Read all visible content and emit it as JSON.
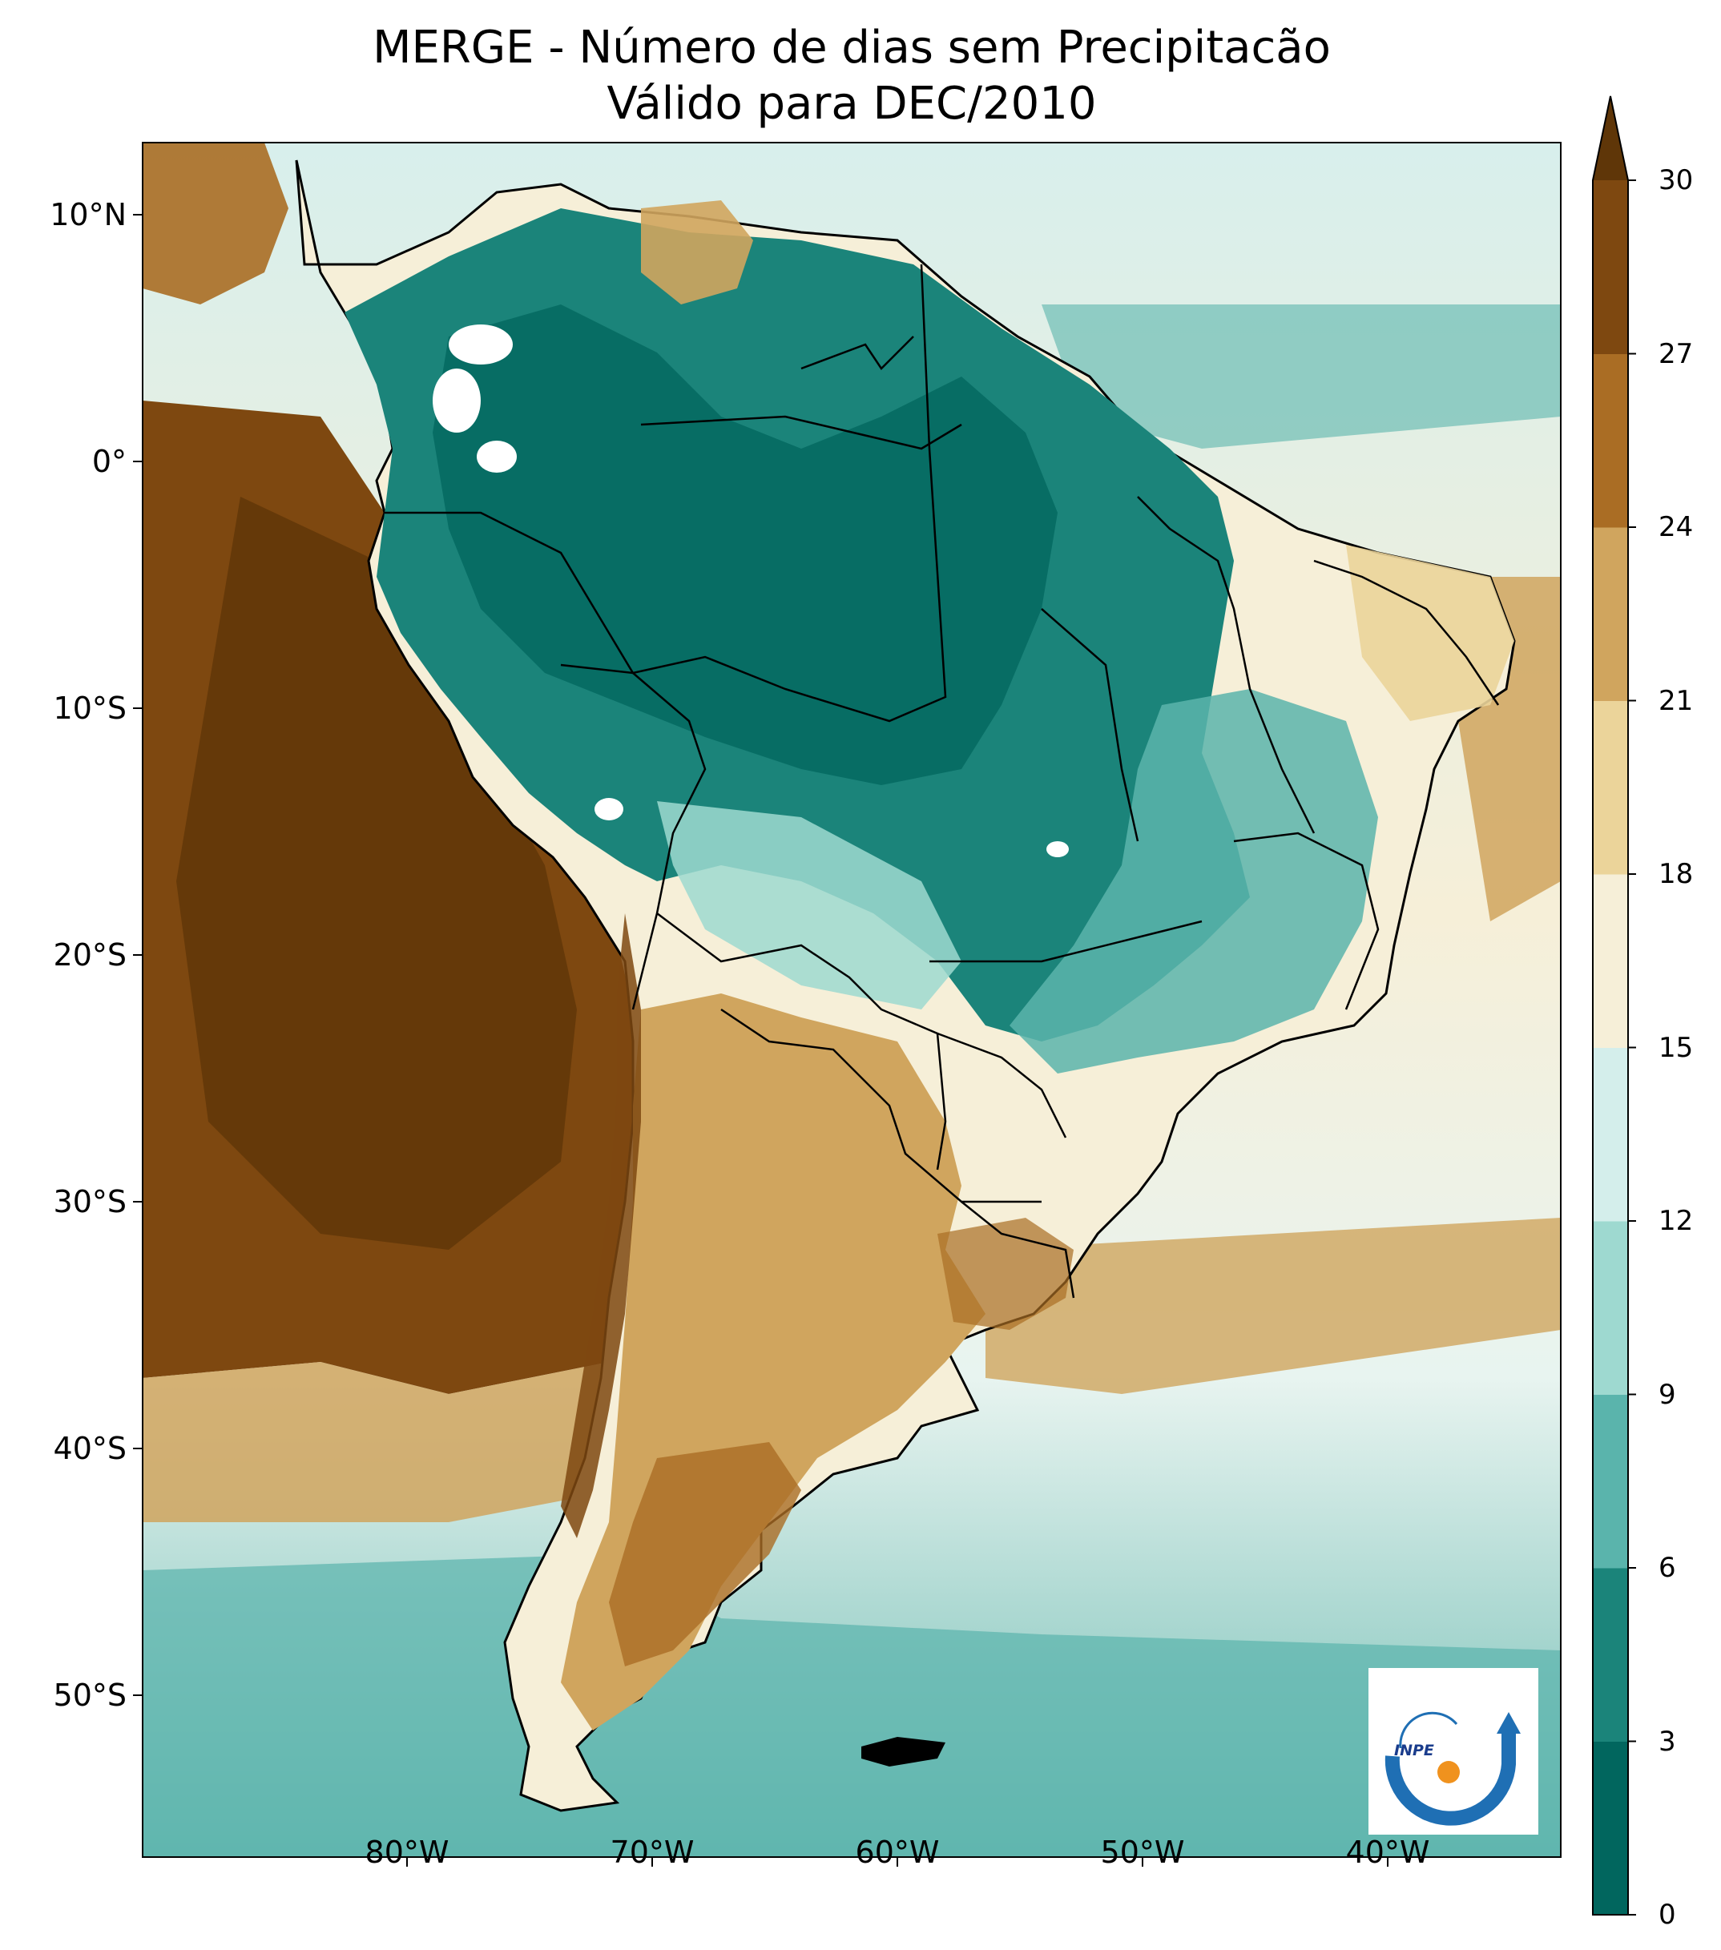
{
  "title": {
    "line1": "MERGE - Número de dias sem Precipitacão",
    "line2": "Válido para DEC/2010"
  },
  "axes": {
    "lat_labels": [
      "10°N",
      "0°",
      "10°S",
      "20°S",
      "30°S",
      "40°S",
      "50°S"
    ],
    "lon_labels": [
      "80°W",
      "70°W",
      "60°W",
      "50°W",
      "40°W"
    ]
  },
  "colorbar": {
    "ticks": [
      "0",
      "3",
      "6",
      "9",
      "12",
      "15",
      "18",
      "21",
      "24",
      "27",
      "30"
    ],
    "colors": [
      "#01665e",
      "#1b847a",
      "#5ab4ac",
      "#9ed9d0",
      "#d4eeeb",
      "#f6efd8",
      "#ebd49a",
      "#d0a55e",
      "#aa6d24",
      "#7e4810"
    ],
    "extend_color": "#5f3608",
    "extend": "max"
  },
  "map": {
    "ocean_colors": [
      "#d8efec",
      "#f6efd8",
      "#a9dcd5",
      "#6fbcb3"
    ],
    "coastline_color": "#000000",
    "no_data_color": "#ffffff"
  },
  "logo": {
    "text": "INPE",
    "blue": "#1f6fb4",
    "orange": "#f0921e"
  }
}
